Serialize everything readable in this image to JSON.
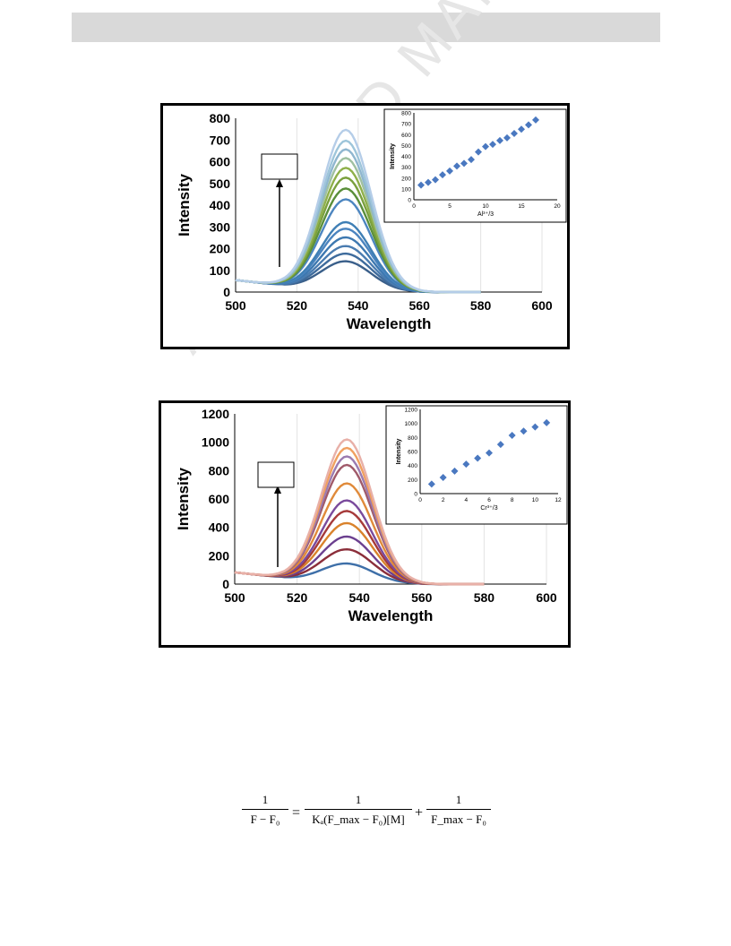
{
  "watermark": "ACCEPTED MANUSCRIPT",
  "equation": {
    "lhs_num": "1",
    "lhs_den": "F − F₀",
    "equals": "=",
    "term1_num": "1",
    "term1_den": "Kₐ(F_max − F₀)[M]",
    "plus": "+",
    "term2_num": "1",
    "term2_den": "F_max − F₀"
  },
  "chart_data": [
    {
      "type": "line",
      "xlabel": "Wavelength",
      "ylabel": "Intensity",
      "xlim": [
        500,
        600
      ],
      "ylim": [
        0,
        800
      ],
      "xticks": [
        500,
        520,
        540,
        560,
        580,
        600
      ],
      "yticks": [
        0,
        100,
        200,
        300,
        400,
        500,
        600,
        700,
        800
      ],
      "peak_x": 536,
      "series_peaks": [
        135,
        170,
        205,
        245,
        285,
        315,
        420,
        470,
        520,
        565,
        610,
        650,
        690,
        740
      ],
      "colors": [
        "#3a5f8a",
        "#3e6b9c",
        "#4a7cb0",
        "#3d78b0",
        "#4b84bf",
        "#3f7fb5",
        "#4d86c0",
        "#5a8f3a",
        "#7aa03d",
        "#8fb04a",
        "#9fc0a0",
        "#8fb6cf",
        "#9ec5da",
        "#b5cde8"
      ],
      "inset": {
        "type": "scatter",
        "xlabel": "Al³⁺/3",
        "ylabel": "Intensity",
        "xlim": [
          0,
          20
        ],
        "ylim": [
          0,
          800
        ],
        "xticks": [
          0,
          5,
          10,
          15,
          20
        ],
        "yticks": [
          0,
          100,
          200,
          300,
          400,
          500,
          600,
          700,
          800
        ],
        "x": [
          1,
          2,
          3,
          4,
          5,
          6,
          7,
          8,
          9,
          10,
          11,
          12,
          13,
          14,
          15,
          16,
          17
        ],
        "y": [
          135,
          160,
          185,
          230,
          265,
          310,
          335,
          370,
          440,
          490,
          510,
          545,
          570,
          610,
          650,
          690,
          735
        ]
      }
    },
    {
      "type": "line",
      "xlabel": "Wavelength",
      "ylabel": "Intensity",
      "xlim": [
        500,
        600
      ],
      "ylim": [
        0,
        1200
      ],
      "xticks": [
        500,
        520,
        540,
        560,
        580,
        600
      ],
      "yticks": [
        0,
        200,
        400,
        600,
        800,
        1000,
        1200
      ],
      "peak_x": 536,
      "series_peaks": [
        135,
        235,
        325,
        420,
        505,
        580,
        700,
        830,
        890,
        950,
        1010
      ],
      "colors": [
        "#3e6fa8",
        "#8b2e3a",
        "#6b3f8f",
        "#d9822b",
        "#a63a3a",
        "#7a4a9c",
        "#e08a3a",
        "#a05a6a",
        "#9b7bb0",
        "#f0a060",
        "#e8b0a8"
      ],
      "inset": {
        "type": "scatter",
        "xlabel": "Cr³⁺/3",
        "ylabel": "Intensity",
        "xlim": [
          0,
          12
        ],
        "ylim": [
          0,
          1200
        ],
        "xticks": [
          0,
          2,
          4,
          6,
          8,
          10,
          12
        ],
        "yticks": [
          0,
          200,
          400,
          600,
          800,
          1000,
          1200
        ],
        "x": [
          1,
          2,
          3,
          4,
          5,
          6,
          7,
          8,
          9,
          10,
          11
        ],
        "y": [
          135,
          230,
          320,
          420,
          505,
          580,
          700,
          830,
          890,
          950,
          1010
        ]
      }
    }
  ]
}
